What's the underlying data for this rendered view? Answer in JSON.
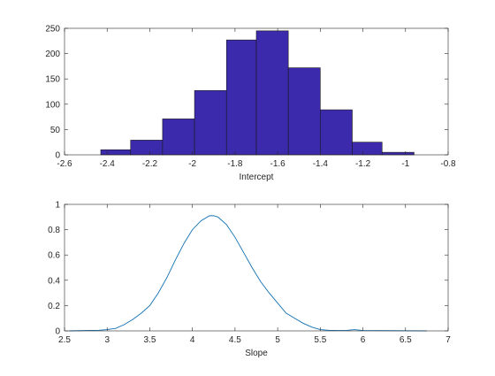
{
  "chart_data": [
    {
      "type": "bar",
      "title": "",
      "xlabel": "Intercept",
      "ylabel": "",
      "xlim": [
        -2.6,
        -0.8
      ],
      "ylim": [
        0,
        250
      ],
      "xticks": [
        "-2.6",
        "-2.4",
        "-2.2",
        "-2",
        "-1.8",
        "-1.6",
        "-1.4",
        "-1.2",
        "-1",
        "-0.8"
      ],
      "yticks": [
        "0",
        "50",
        "100",
        "150",
        "200",
        "250"
      ],
      "bins": [
        {
          "x0": -2.43,
          "x1": -2.29,
          "value": 10
        },
        {
          "x0": -2.29,
          "x1": -2.14,
          "value": 29
        },
        {
          "x0": -2.14,
          "x1": -1.99,
          "value": 71
        },
        {
          "x0": -1.99,
          "x1": -1.84,
          "value": 127
        },
        {
          "x0": -1.84,
          "x1": -1.7,
          "value": 227
        },
        {
          "x0": -1.7,
          "x1": -1.55,
          "value": 245
        },
        {
          "x0": -1.55,
          "x1": -1.4,
          "value": 172
        },
        {
          "x0": -1.4,
          "x1": -1.25,
          "value": 89
        },
        {
          "x0": -1.25,
          "x1": -1.11,
          "value": 25
        },
        {
          "x0": -1.11,
          "x1": -0.96,
          "value": 5
        }
      ],
      "colors": {
        "bar_fill": "#3b2aab",
        "bar_edge": "#1a1a1a"
      }
    },
    {
      "type": "line",
      "title": "",
      "xlabel": "Slope",
      "ylabel": "",
      "xlim": [
        2.5,
        7
      ],
      "ylim": [
        0,
        1
      ],
      "xticks": [
        "2.5",
        "3",
        "3.5",
        "4",
        "4.5",
        "5",
        "5.5",
        "6",
        "6.5",
        "7"
      ],
      "yticks": [
        "0",
        "0.2",
        "0.4",
        "0.6",
        "0.8",
        "1"
      ],
      "series": [
        {
          "color": "#1170b3",
          "x": [
            2.55,
            2.9,
            3.0,
            3.1,
            3.2,
            3.3,
            3.4,
            3.5,
            3.6,
            3.7,
            3.8,
            3.9,
            4.0,
            4.1,
            4.2,
            4.25,
            4.3,
            4.4,
            4.5,
            4.6,
            4.7,
            4.8,
            4.9,
            5.0,
            5.1,
            5.2,
            5.3,
            5.4,
            5.5,
            5.6,
            5.7,
            5.8,
            5.9,
            6.0,
            6.2,
            6.5,
            6.75
          ],
          "y": [
            0.0,
            0.005,
            0.01,
            0.02,
            0.05,
            0.09,
            0.14,
            0.2,
            0.3,
            0.42,
            0.56,
            0.69,
            0.8,
            0.87,
            0.91,
            0.91,
            0.9,
            0.84,
            0.74,
            0.62,
            0.5,
            0.39,
            0.3,
            0.22,
            0.14,
            0.1,
            0.06,
            0.03,
            0.01,
            0.005,
            0.003,
            0.003,
            0.01,
            0.003,
            0.002,
            0.001,
            0.0
          ]
        }
      ]
    }
  ]
}
